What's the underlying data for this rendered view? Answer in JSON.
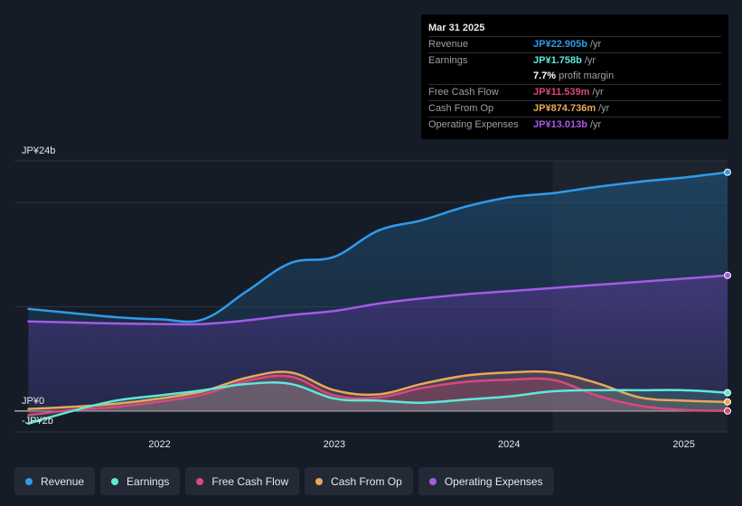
{
  "tooltip": {
    "date": "Mar 31 2025",
    "rows": [
      {
        "label": "Revenue",
        "value": "JP¥22.905b",
        "unit": "/yr",
        "color": "#2f9be9"
      },
      {
        "label": "Earnings",
        "value": "JP¥1.758b",
        "unit": "/yr",
        "color": "#5ee8d8"
      },
      {
        "label": "",
        "value": "7.7%",
        "unit": "profit margin",
        "color": "#ffffff"
      },
      {
        "label": "Free Cash Flow",
        "value": "JP¥11.539m",
        "unit": "/yr",
        "color": "#d9487f"
      },
      {
        "label": "Cash From Op",
        "value": "JP¥874.736m",
        "unit": "/yr",
        "color": "#e9a858"
      },
      {
        "label": "Operating Expenses",
        "value": "JP¥13.013b",
        "unit": "/yr",
        "color": "#a55ae8"
      }
    ]
  },
  "legend": [
    {
      "label": "Revenue",
      "color": "#2f9be9"
    },
    {
      "label": "Earnings",
      "color": "#5ee8d8"
    },
    {
      "label": "Free Cash Flow",
      "color": "#d9487f"
    },
    {
      "label": "Cash From Op",
      "color": "#e9a858"
    },
    {
      "label": "Operating Expenses",
      "color": "#a55ae8"
    }
  ],
  "chart_data": {
    "type": "area",
    "title": "",
    "xlabel": "",
    "ylabel": "",
    "unit": "JP¥ billions",
    "y_tick_labels": [
      "JP¥24b",
      "JP¥0",
      "-JP¥2b"
    ],
    "x_tick_labels": [
      "2022",
      "2023",
      "2024",
      "2025"
    ],
    "x_tick_values": [
      2022.0,
      2023.0,
      2024.0,
      2025.0
    ],
    "xlim": [
      2021.17,
      2025.25
    ],
    "ylim": [
      -2,
      24
    ],
    "highlight_start": 2024.25,
    "x": [
      2021.25,
      2021.5,
      2021.75,
      2022.0,
      2022.25,
      2022.5,
      2022.75,
      2023.0,
      2023.25,
      2023.5,
      2023.75,
      2024.0,
      2024.25,
      2024.5,
      2024.75,
      2025.0,
      2025.25
    ],
    "series": [
      {
        "name": "Revenue",
        "color": "#2f9be9",
        "values": [
          9.8,
          9.4,
          9.0,
          8.8,
          8.8,
          11.5,
          14.2,
          14.8,
          17.3,
          18.3,
          19.6,
          20.5,
          20.9,
          21.5,
          22.0,
          22.4,
          22.905
        ]
      },
      {
        "name": "Operating Expenses",
        "color": "#a55ae8",
        "values": [
          8.6,
          8.5,
          8.4,
          8.35,
          8.35,
          8.7,
          9.2,
          9.6,
          10.3,
          10.8,
          11.2,
          11.5,
          11.8,
          12.1,
          12.4,
          12.7,
          13.013
        ]
      },
      {
        "name": "Cash From Op",
        "color": "#e9a858",
        "values": [
          0.2,
          0.4,
          0.7,
          1.2,
          1.9,
          3.2,
          3.7,
          2.0,
          1.6,
          2.6,
          3.4,
          3.7,
          3.7,
          2.7,
          1.3,
          1.0,
          0.875
        ]
      },
      {
        "name": "Free Cash Flow",
        "color": "#d9487f",
        "values": [
          -0.4,
          0.1,
          0.4,
          0.9,
          1.6,
          2.9,
          3.3,
          1.5,
          1.3,
          2.2,
          2.8,
          3.0,
          3.0,
          1.5,
          0.5,
          0.1,
          0.012
        ]
      },
      {
        "name": "Earnings",
        "color": "#5ee8d8",
        "values": [
          -1.2,
          0.0,
          1.0,
          1.5,
          2.0,
          2.6,
          2.6,
          1.2,
          1.0,
          0.8,
          1.1,
          1.4,
          1.9,
          2.0,
          2.0,
          2.0,
          1.758
        ]
      }
    ]
  }
}
